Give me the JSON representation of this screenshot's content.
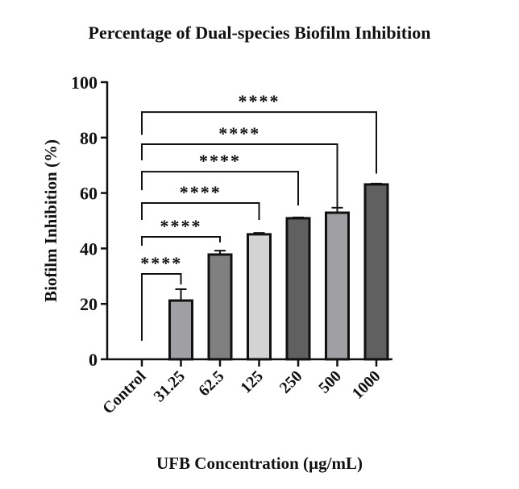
{
  "chart_data": {
    "type": "bar",
    "title": "Percentage of Dual-species Biofilm Inhibition",
    "xlabel": "UFB Concentration (µg/mL)",
    "ylabel": "Biofilm Inhibition (%)",
    "ylim": [
      0,
      100
    ],
    "yticks": [
      0,
      20,
      40,
      60,
      80,
      100
    ],
    "categories": [
      "Control",
      "31.25",
      "62.5",
      "125",
      "250",
      "500",
      "1000"
    ],
    "values": [
      0,
      21.2,
      37.8,
      45.1,
      50.9,
      52.9,
      63.1
    ],
    "error": [
      0,
      4.1,
      1.4,
      0.5,
      0.3,
      1.8,
      0.3
    ],
    "colors": [
      "#ffffff",
      "#a0a0a4",
      "#808080",
      "#d3d3d3",
      "#606060",
      "#a0a0a4",
      "#606060"
    ],
    "grid": false,
    "significance": [
      {
        "from": "Control",
        "to": "31.25",
        "label": "****",
        "y": 30.8,
        "left_bottom": 6.7,
        "right_bottom": 27
      },
      {
        "from": "Control",
        "to": "62.5",
        "label": "****",
        "y": 44.2,
        "left_bottom": 41,
        "right_bottom": 42.2
      },
      {
        "from": "Control",
        "to": "125",
        "label": "****",
        "y": 56.4,
        "left_bottom": 50.3,
        "right_bottom": 50.3
      },
      {
        "from": "Control",
        "to": "250",
        "label": "****",
        "y": 67.7,
        "left_bottom": 61,
        "right_bottom": 55.5
      },
      {
        "from": "Control",
        "to": "500",
        "label": "****",
        "y": 77.6,
        "left_bottom": 71.8,
        "right_bottom": 54.7
      },
      {
        "from": "Control",
        "to": "1000",
        "label": "****",
        "y": 89.2,
        "left_bottom": 81,
        "right_bottom": 67
      }
    ]
  }
}
